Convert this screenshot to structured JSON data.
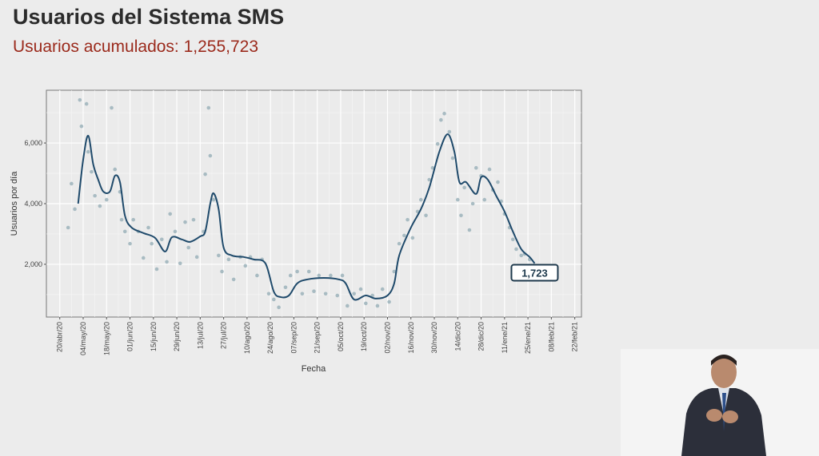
{
  "chart_data": {
    "type": "scatter-line",
    "title": "Usuarios del Sistema SMS",
    "subtitle": "Usuarios acumulados: 1,255,723",
    "x_label": "Fecha",
    "y_label": "Usuarios por día",
    "xlim": [
      "2020-04-12",
      "2021-02-26"
    ],
    "ylim": [
      260,
      7740
    ],
    "xticks": [
      {
        "value": "2020-04-20",
        "label": "20/abr/20"
      },
      {
        "value": "2020-05-04",
        "label": "04/may/20"
      },
      {
        "value": "2020-05-18",
        "label": "18/may/20"
      },
      {
        "value": "2020-06-01",
        "label": "01/jun/20"
      },
      {
        "value": "2020-06-15",
        "label": "15/jun/20"
      },
      {
        "value": "2020-06-29",
        "label": "29/jun/20"
      },
      {
        "value": "2020-07-13",
        "label": "13/jul/20"
      },
      {
        "value": "2020-07-27",
        "label": "27/jul/20"
      },
      {
        "value": "2020-08-10",
        "label": "10/ago/20"
      },
      {
        "value": "2020-08-24",
        "label": "24/ago/20"
      },
      {
        "value": "2020-09-07",
        "label": "07/sep/20"
      },
      {
        "value": "2020-09-21",
        "label": "21/sep/20"
      },
      {
        "value": "2020-10-05",
        "label": "05/oct/20"
      },
      {
        "value": "2020-10-19",
        "label": "19/oct/20"
      },
      {
        "value": "2020-11-02",
        "label": "02/nov/20"
      },
      {
        "value": "2020-11-16",
        "label": "16/nov/20"
      },
      {
        "value": "2020-11-30",
        "label": "30/nov/20"
      },
      {
        "value": "2020-12-14",
        "label": "14/dic/20"
      },
      {
        "value": "2020-12-28",
        "label": "28/dic/20"
      },
      {
        "value": "2021-01-11",
        "label": "11/ene/21"
      },
      {
        "value": "2021-01-25",
        "label": "25/ene/21"
      },
      {
        "value": "2021-02-08",
        "label": "08/feb/21"
      },
      {
        "value": "2021-02-22",
        "label": "22/feb/21"
      }
    ],
    "yticks": [
      {
        "value": 2000,
        "label": "2,000"
      },
      {
        "value": 4000,
        "label": "4,000"
      },
      {
        "value": 6000,
        "label": "6,000"
      }
    ],
    "grid": true,
    "series": [
      {
        "type": "scatter",
        "color": "#9cb3bb",
        "x": [
          "2020-04-25",
          "2020-04-27",
          "2020-04-29",
          "2020-05-02",
          "2020-05-03",
          "2020-05-06",
          "2020-05-07",
          "2020-05-09",
          "2020-05-11",
          "2020-05-14",
          "2020-05-18",
          "2020-05-21",
          "2020-05-23",
          "2020-05-26",
          "2020-05-27",
          "2020-05-29",
          "2020-06-01",
          "2020-06-03",
          "2020-06-06",
          "2020-06-09",
          "2020-06-12",
          "2020-06-14",
          "2020-06-17",
          "2020-06-20",
          "2020-06-23",
          "2020-06-25",
          "2020-06-28",
          "2020-07-01",
          "2020-07-04",
          "2020-07-06",
          "2020-07-09",
          "2020-07-11",
          "2020-07-15",
          "2020-07-16",
          "2020-07-18",
          "2020-07-19",
          "2020-07-21",
          "2020-07-24",
          "2020-07-26",
          "2020-07-30",
          "2020-08-02",
          "2020-08-06",
          "2020-08-09",
          "2020-08-12",
          "2020-08-16",
          "2020-08-19",
          "2020-08-23",
          "2020-08-26",
          "2020-08-29",
          "2020-09-02",
          "2020-09-05",
          "2020-09-09",
          "2020-09-12",
          "2020-09-16",
          "2020-09-19",
          "2020-09-22",
          "2020-09-26",
          "2020-09-29",
          "2020-10-03",
          "2020-10-06",
          "2020-10-09",
          "2020-10-13",
          "2020-10-17",
          "2020-10-20",
          "2020-10-24",
          "2020-10-27",
          "2020-10-30",
          "2020-11-03",
          "2020-11-06",
          "2020-11-09",
          "2020-11-12",
          "2020-11-14",
          "2020-11-17",
          "2020-11-20",
          "2020-11-22",
          "2020-11-25",
          "2020-11-27",
          "2020-11-29",
          "2020-12-02",
          "2020-12-04",
          "2020-12-06",
          "2020-12-09",
          "2020-12-11",
          "2020-12-14",
          "2020-12-16",
          "2020-12-18",
          "2020-12-21",
          "2020-12-23",
          "2020-12-25",
          "2020-12-28",
          "2020-12-30",
          "2021-01-02",
          "2021-01-04",
          "2021-01-07",
          "2021-01-09",
          "2021-01-11",
          "2021-01-14",
          "2021-01-16",
          "2021-01-18",
          "2021-01-21",
          "2021-01-23",
          "2021-01-26"
        ],
        "values": [
          3210,
          4660,
          3820,
          7420,
          6550,
          7290,
          5710,
          5050,
          4260,
          3920,
          4130,
          7160,
          5130,
          4390,
          3470,
          3080,
          2680,
          3470,
          3080,
          2210,
          3210,
          2680,
          1840,
          2820,
          2080,
          3660,
          3080,
          2030,
          3390,
          2550,
          3470,
          2240,
          3080,
          4970,
          7160,
          5580,
          4130,
          2290,
          1760,
          2160,
          1500,
          2240,
          1950,
          2240,
          1630,
          2160,
          1030,
          840,
          580,
          1240,
          1630,
          1760,
          1030,
          1760,
          1110,
          1630,
          1030,
          1630,
          970,
          1630,
          630,
          1030,
          1180,
          710,
          970,
          630,
          1180,
          760,
          1760,
          2680,
          2950,
          3470,
          2870,
          3740,
          4130,
          3610,
          4790,
          5180,
          5970,
          6760,
          6970,
          6370,
          5500,
          4130,
          3610,
          4530,
          3130,
          4000,
          5180,
          4920,
          4130,
          5130,
          4450,
          4710,
          4080,
          3660,
          3210,
          2820,
          2500,
          2290,
          2340,
          2160
        ]
      },
      {
        "type": "line",
        "color": "#1f4a6b",
        "x": [
          "2020-05-01",
          "2020-05-04",
          "2020-05-07",
          "2020-05-10",
          "2020-05-13",
          "2020-05-16",
          "2020-05-20",
          "2020-05-23",
          "2020-05-26",
          "2020-05-29",
          "2020-06-02",
          "2020-06-09",
          "2020-06-16",
          "2020-06-22",
          "2020-06-26",
          "2020-07-02",
          "2020-07-07",
          "2020-07-13",
          "2020-07-16",
          "2020-07-19",
          "2020-07-21",
          "2020-07-24",
          "2020-07-27",
          "2020-08-01",
          "2020-08-08",
          "2020-08-14",
          "2020-08-21",
          "2020-08-26",
          "2020-08-30",
          "2020-09-04",
          "2020-09-09",
          "2020-09-15",
          "2020-09-25",
          "2020-10-04",
          "2020-10-08",
          "2020-10-13",
          "2020-10-20",
          "2020-10-26",
          "2020-11-02",
          "2020-11-06",
          "2020-11-09",
          "2020-11-16",
          "2020-11-22",
          "2020-11-27",
          "2020-12-03",
          "2020-12-08",
          "2020-12-12",
          "2020-12-15",
          "2020-12-19",
          "2020-12-25",
          "2020-12-28",
          "2021-01-01",
          "2021-01-06",
          "2021-01-11",
          "2021-01-16",
          "2021-01-21",
          "2021-01-26",
          "2021-01-29"
        ],
        "values": [
          4000,
          5450,
          6240,
          5300,
          4790,
          4400,
          4400,
          4920,
          4710,
          3600,
          3210,
          3030,
          2870,
          2420,
          2890,
          2820,
          2740,
          2920,
          3080,
          4000,
          4340,
          3820,
          2550,
          2290,
          2240,
          2160,
          2030,
          1100,
          920,
          970,
          1370,
          1500,
          1550,
          1500,
          1370,
          840,
          970,
          870,
          970,
          1370,
          2290,
          3210,
          3820,
          4530,
          5710,
          6290,
          5710,
          4710,
          4710,
          4320,
          4870,
          4790,
          4260,
          3740,
          3080,
          2500,
          2240,
          2030
        ]
      }
    ],
    "annotation": {
      "value": 1723,
      "label": "1,723"
    }
  }
}
